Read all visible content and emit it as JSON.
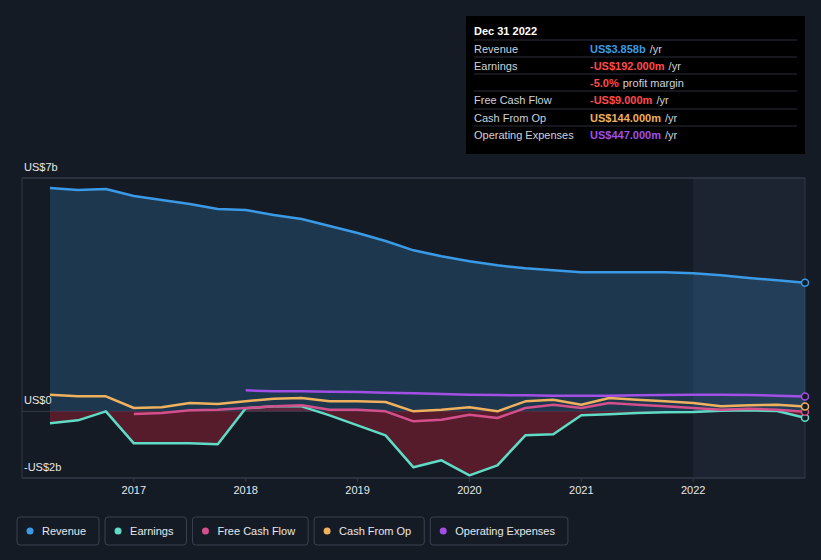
{
  "chart_data": {
    "type": "line",
    "x": [
      2016.25,
      2016.5,
      2016.75,
      2017.0,
      2017.25,
      2017.5,
      2017.75,
      2018.0,
      2018.25,
      2018.5,
      2018.75,
      2019.0,
      2019.25,
      2019.5,
      2019.75,
      2020.0,
      2020.25,
      2020.5,
      2020.75,
      2021.0,
      2021.25,
      2021.5,
      2021.75,
      2022.0,
      2022.25,
      2022.5,
      2022.75,
      2023.0
    ],
    "xlim": [
      2016,
      2023
    ],
    "xticks": [
      2017,
      2018,
      2019,
      2020,
      2021,
      2022
    ],
    "ylim": [
      -2,
      7
    ],
    "yticks": [
      {
        "value": -2,
        "label": "-US$2b"
      },
      {
        "value": 0,
        "label": "US$0"
      },
      {
        "value": 7,
        "label": "US$7b"
      }
    ],
    "grid": true,
    "legend": "bottom",
    "series": [
      {
        "name": "Revenue",
        "type": "area",
        "color": "#3a9ae6",
        "values": [
          6.7,
          6.64,
          6.67,
          6.46,
          6.34,
          6.22,
          6.07,
          6.04,
          5.89,
          5.77,
          5.56,
          5.35,
          5.11,
          4.83,
          4.65,
          4.5,
          4.38,
          4.29,
          4.23,
          4.17,
          4.17,
          4.17,
          4.17,
          4.14,
          4.08,
          4.0,
          3.93,
          3.858
        ]
      },
      {
        "name": "Earnings",
        "type": "area",
        "color": "#5fdcc6",
        "values": [
          -0.36,
          -0.27,
          0.0,
          -0.96,
          -0.96,
          -0.96,
          -0.99,
          0.09,
          0.15,
          0.15,
          -0.12,
          -0.42,
          -0.72,
          -1.68,
          -1.47,
          -1.92,
          -1.62,
          -0.72,
          -0.69,
          -0.12,
          -0.09,
          -0.05,
          -0.03,
          -0.02,
          0.02,
          0.03,
          0.01,
          -0.192
        ]
      },
      {
        "name": "Free Cash Flow",
        "type": "line",
        "color": "#d4508c",
        "values": [
          null,
          null,
          null,
          -0.08,
          -0.05,
          0.03,
          0.05,
          0.1,
          0.15,
          0.18,
          0.05,
          0.05,
          0.0,
          -0.3,
          -0.25,
          -0.1,
          -0.2,
          0.1,
          0.2,
          0.1,
          0.25,
          0.2,
          0.15,
          0.1,
          0.05,
          0.08,
          0.05,
          -0.009
        ]
      },
      {
        "name": "Cash From Op",
        "type": "line",
        "color": "#f0b15e",
        "values": [
          0.5,
          0.45,
          0.45,
          0.1,
          0.12,
          0.25,
          0.22,
          0.3,
          0.38,
          0.4,
          0.3,
          0.3,
          0.28,
          0.0,
          0.05,
          0.12,
          0.0,
          0.3,
          0.35,
          0.2,
          0.4,
          0.35,
          0.3,
          0.25,
          0.15,
          0.18,
          0.2,
          0.144
        ]
      },
      {
        "name": "Operating Expenses",
        "type": "line",
        "color": "#a24fe6",
        "values": [
          null,
          null,
          null,
          null,
          null,
          null,
          null,
          0.63,
          0.6,
          0.6,
          0.59,
          0.58,
          0.56,
          0.54,
          0.52,
          0.5,
          0.49,
          0.48,
          0.47,
          0.47,
          0.47,
          0.48,
          0.49,
          0.5,
          0.5,
          0.49,
          0.47,
          0.447
        ]
      }
    ],
    "annotations": {
      "date": "Dec 31 2022",
      "rows": [
        {
          "label": "Revenue",
          "value": "US$3.858b",
          "unit": "/yr",
          "color": "#3a9ae6"
        },
        {
          "label": "Earnings",
          "value": "-US$192.000m",
          "unit": "/yr",
          "color": "#ff4b4b"
        },
        {
          "value": "-5.0%",
          "unit": "profit margin",
          "color": "#ff4b4b"
        },
        {
          "label": "Free Cash Flow",
          "value": "-US$9.000m",
          "unit": "/yr",
          "color": "#ff4b4b"
        },
        {
          "label": "Cash From Op",
          "value": "US$144.000m",
          "unit": "/yr",
          "color": "#f0b15e"
        },
        {
          "label": "Operating Expenses",
          "value": "US$447.000m",
          "unit": "/yr",
          "color": "#a24fe6"
        }
      ]
    }
  }
}
